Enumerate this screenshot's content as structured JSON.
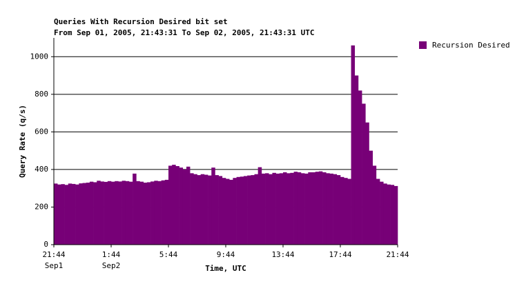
{
  "chart_data": {
    "type": "histogram",
    "title": "Queries With Recursion Desired bit set",
    "subtitle": "From Sep 01, 2005, 21:43:31 To Sep 02, 2005, 21:43:31 UTC",
    "y_label": "Query Rate (q/s)",
    "x_label": "Time, UTC",
    "series": [
      {
        "name": "Recursion Desired",
        "color": "#770077",
        "values": [
          325,
          320,
          322,
          318,
          325,
          323,
          320,
          326,
          328,
          330,
          335,
          332,
          340,
          336,
          334,
          338,
          335,
          338,
          336,
          340,
          338,
          335,
          378,
          338,
          335,
          330,
          332,
          336,
          340,
          338,
          342,
          345,
          420,
          425,
          418,
          410,
          400,
          415,
          380,
          375,
          370,
          375,
          372,
          368,
          410,
          370,
          365,
          355,
          350,
          345,
          355,
          360,
          362,
          365,
          368,
          370,
          375,
          412,
          378,
          380,
          375,
          382,
          378,
          380,
          385,
          380,
          382,
          388,
          385,
          380,
          378,
          385,
          385,
          388,
          390,
          385,
          380,
          378,
          375,
          370,
          360,
          355,
          350,
          1060,
          900,
          820,
          750,
          650,
          500,
          420,
          350,
          335,
          325,
          320,
          318,
          312
        ]
      }
    ],
    "bins": [
      0,
      0.25,
      0.5,
      0.75,
      1,
      1.25,
      1.5,
      1.75,
      2,
      2.25,
      2.5,
      2.75,
      3,
      3.25,
      3.5,
      3.75,
      4,
      4.25,
      4.5,
      4.75,
      5,
      5.25,
      5.5,
      5.75,
      6,
      6.25,
      6.5,
      6.75,
      7,
      7.25,
      7.5,
      7.75,
      8,
      8.25,
      8.5,
      8.75,
      9,
      9.25,
      9.5,
      9.75,
      10,
      10.25,
      10.5,
      10.75,
      11,
      11.25,
      11.5,
      11.75,
      12,
      12.25,
      12.5,
      12.75,
      13,
      13.25,
      13.5,
      13.75,
      14,
      14.25,
      14.5,
      14.75,
      15,
      15.25,
      15.5,
      15.75,
      16,
      16.25,
      16.5,
      16.75,
      17,
      17.25,
      17.5,
      17.75,
      18,
      18.25,
      18.5,
      18.75,
      19,
      19.25,
      19.5,
      19.75,
      20,
      20.25,
      20.5,
      20.75,
      21,
      21.25,
      21.5,
      21.75,
      22,
      22.25,
      22.5,
      22.75,
      23,
      23.25,
      23.5,
      23.75,
      24
    ],
    "xlim": [
      0,
      24
    ],
    "xticks": [
      {
        "value": 0,
        "label": "21:44"
      },
      {
        "value": 4,
        "label": "1:44"
      },
      {
        "value": 8,
        "label": "5:44"
      },
      {
        "value": 12,
        "label": "9:44"
      },
      {
        "value": 16,
        "label": "13:44"
      },
      {
        "value": 20,
        "label": "17:44"
      },
      {
        "value": 24,
        "label": "21:44"
      }
    ],
    "x_date_labels": [
      "Sep1",
      "Sep2"
    ],
    "ylim": [
      0,
      1100
    ],
    "yticks": [
      0,
      200,
      400,
      600,
      800,
      1000
    ],
    "grid": true,
    "legend": "right"
  }
}
